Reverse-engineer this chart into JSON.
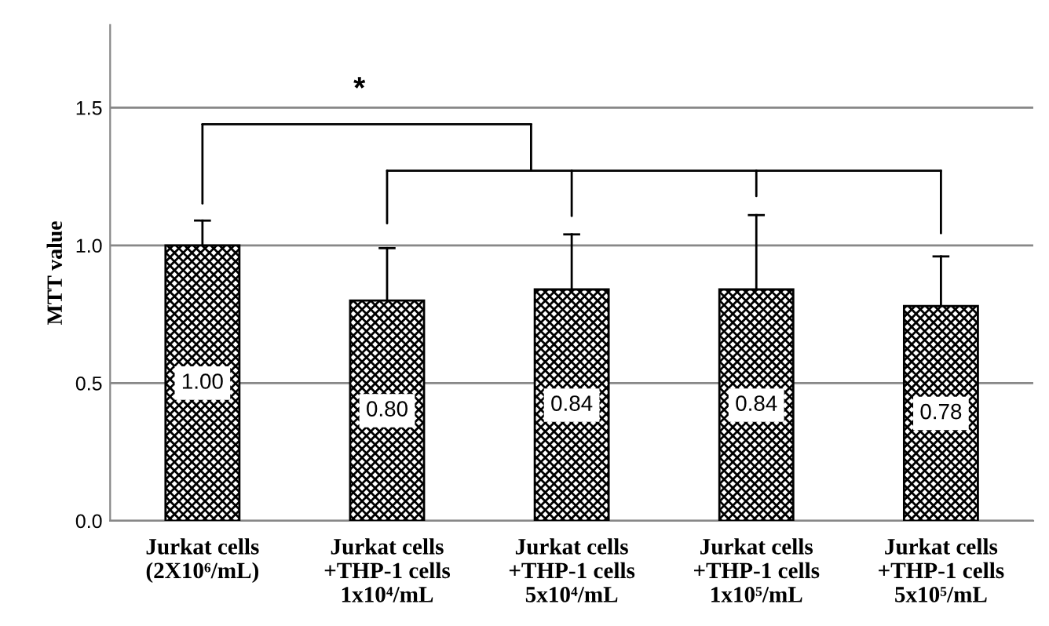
{
  "chart_data": {
    "type": "bar",
    "ylabel": "MTT value",
    "categories": [
      "Jurkat cells\n(2X10⁶/mL)",
      "Jurkat cells\n+THP-1 cells\n1x10⁴/mL",
      "Jurkat cells\n+THP-1 cells\n5x10⁴/mL",
      "Jurkat cells\n+THP-1 cells\n1x10⁵/mL",
      "Jurkat cells\n+THP-1 cells\n5x10⁵/mL"
    ],
    "values": [
      1.0,
      0.8,
      0.84,
      0.84,
      0.78
    ],
    "errors": [
      [
        1.0,
        1.09
      ],
      [
        0.8,
        0.99
      ],
      [
        0.84,
        1.04
      ],
      [
        0.84,
        1.11
      ],
      [
        0.78,
        0.96
      ]
    ],
    "color": "#000000",
    "value_labels": [
      "1.00",
      "0.80",
      "0.84",
      "0.84",
      "0.78"
    ],
    "ylim": [
      0,
      1.8
    ],
    "yticks": [
      {
        "value": 0,
        "label": "0.0"
      },
      {
        "value": 0.5,
        "label": "0.5"
      },
      {
        "value": 1.0,
        "label": "1.0"
      },
      {
        "value": 1.5,
        "label": "1.5"
      }
    ],
    "grid": "y",
    "annotations": [
      "*"
    ]
  }
}
